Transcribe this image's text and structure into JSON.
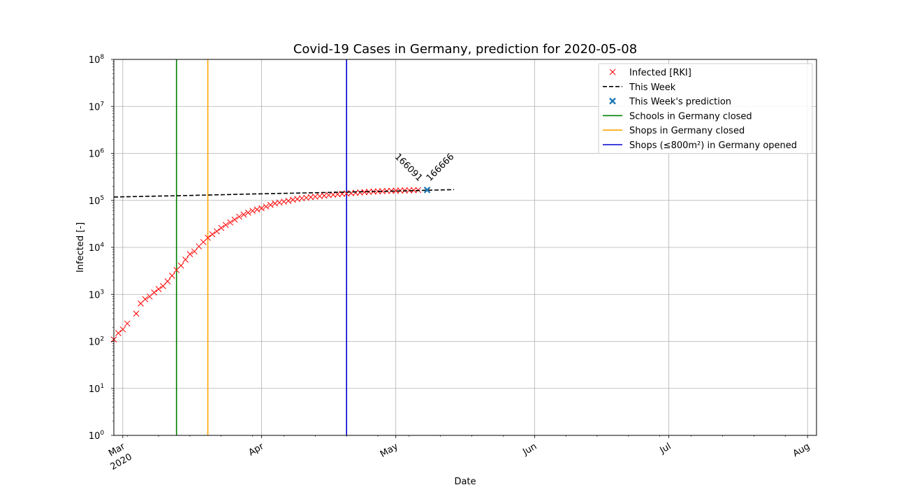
{
  "chart_data": {
    "type": "line",
    "title": "Covid-19 Cases in Germany, prediction for 2020-05-08",
    "xlabel": "Date",
    "ylabel": "Infected [-]",
    "yscale": "log",
    "ylim": [
      1,
      100000000
    ],
    "xlim": [
      "2020-02-28",
      "2020-08-03"
    ],
    "grid": true,
    "legend_position": "top-right",
    "x_ticks": [
      {
        "date": "2020-03-01",
        "label": "Mar",
        "sublabel": "2020"
      },
      {
        "date": "2020-04-01",
        "label": "Apr",
        "sublabel": ""
      },
      {
        "date": "2020-05-01",
        "label": "May",
        "sublabel": ""
      },
      {
        "date": "2020-06-01",
        "label": "Jun",
        "sublabel": ""
      },
      {
        "date": "2020-07-01",
        "label": "Jul",
        "sublabel": ""
      },
      {
        "date": "2020-08-01",
        "label": "Aug",
        "sublabel": ""
      }
    ],
    "y_ticks": [
      {
        "value": 1,
        "base": "10",
        "exp": "0"
      },
      {
        "value": 10,
        "base": "10",
        "exp": "1"
      },
      {
        "value": 100,
        "base": "10",
        "exp": "2"
      },
      {
        "value": 1000,
        "base": "10",
        "exp": "3"
      },
      {
        "value": 10000,
        "base": "10",
        "exp": "4"
      },
      {
        "value": 100000,
        "base": "10",
        "exp": "5"
      },
      {
        "value": 1000000,
        "base": "10",
        "exp": "6"
      },
      {
        "value": 10000000,
        "base": "10",
        "exp": "7"
      },
      {
        "value": 100000000,
        "base": "10",
        "exp": "8"
      }
    ],
    "series": [
      {
        "name": "Infected [RKI]",
        "kind": "markers",
        "marker": "x",
        "color": "#ff0000",
        "points": [
          [
            "2020-02-28",
            110
          ],
          [
            "2020-02-29",
            150
          ],
          [
            "2020-03-01",
            180
          ],
          [
            "2020-03-02",
            240
          ],
          [
            "2020-03-04",
            390
          ],
          [
            "2020-03-05",
            640
          ],
          [
            "2020-03-06",
            790
          ],
          [
            "2020-03-07",
            900
          ],
          [
            "2020-03-08",
            1100
          ],
          [
            "2020-03-09",
            1300
          ],
          [
            "2020-03-10",
            1500
          ],
          [
            "2020-03-11",
            1900
          ],
          [
            "2020-03-12",
            2500
          ],
          [
            "2020-03-13",
            3300
          ],
          [
            "2020-03-14",
            4100
          ],
          [
            "2020-03-15",
            5500
          ],
          [
            "2020-03-16",
            7200
          ],
          [
            "2020-03-17",
            8200
          ],
          [
            "2020-03-18",
            10500
          ],
          [
            "2020-03-19",
            13000
          ],
          [
            "2020-03-20",
            16000
          ],
          [
            "2020-03-21",
            19000
          ],
          [
            "2020-03-22",
            22000
          ],
          [
            "2020-03-23",
            26000
          ],
          [
            "2020-03-24",
            30000
          ],
          [
            "2020-03-25",
            34000
          ],
          [
            "2020-03-26",
            39000
          ],
          [
            "2020-03-27",
            45000
          ],
          [
            "2020-03-28",
            50000
          ],
          [
            "2020-03-29",
            55000
          ],
          [
            "2020-03-30",
            60000
          ],
          [
            "2020-03-31",
            64000
          ],
          [
            "2020-04-01",
            68000
          ],
          [
            "2020-04-02",
            74000
          ],
          [
            "2020-04-03",
            80000
          ],
          [
            "2020-04-04",
            86000
          ],
          [
            "2020-04-05",
            90000
          ],
          [
            "2020-04-06",
            94000
          ],
          [
            "2020-04-07",
            98000
          ],
          [
            "2020-04-08",
            103000
          ],
          [
            "2020-04-09",
            107000
          ],
          [
            "2020-04-10",
            111000
          ],
          [
            "2020-04-11",
            114000
          ],
          [
            "2020-04-12",
            117000
          ],
          [
            "2020-04-13",
            120000
          ],
          [
            "2020-04-14",
            123000
          ],
          [
            "2020-04-15",
            126000
          ],
          [
            "2020-04-16",
            129000
          ],
          [
            "2020-04-17",
            132000
          ],
          [
            "2020-04-18",
            135000
          ],
          [
            "2020-04-19",
            138000
          ],
          [
            "2020-04-20",
            140000
          ],
          [
            "2020-04-21",
            142000
          ],
          [
            "2020-04-22",
            145000
          ],
          [
            "2020-04-23",
            147000
          ],
          [
            "2020-04-24",
            150000
          ],
          [
            "2020-04-25",
            152000
          ],
          [
            "2020-04-26",
            154000
          ],
          [
            "2020-04-27",
            156000
          ],
          [
            "2020-04-28",
            157000
          ],
          [
            "2020-04-29",
            159000
          ],
          [
            "2020-04-30",
            160000
          ],
          [
            "2020-05-01",
            161000
          ],
          [
            "2020-05-02",
            162000
          ],
          [
            "2020-05-03",
            163000
          ],
          [
            "2020-05-04",
            164000
          ],
          [
            "2020-05-05",
            165000
          ],
          [
            "2020-05-06",
            166091
          ]
        ]
      },
      {
        "name": "This Week",
        "kind": "line",
        "dash": true,
        "color": "#000000",
        "points": [
          [
            "2020-02-28",
            118000
          ],
          [
            "2020-03-15",
            127000
          ],
          [
            "2020-04-01",
            138000
          ],
          [
            "2020-04-15",
            147000
          ],
          [
            "2020-05-01",
            158000
          ],
          [
            "2020-05-14",
            170000
          ]
        ]
      },
      {
        "name": "This Week's prediction",
        "kind": "markers",
        "marker": "X",
        "color": "#1f77b4",
        "points": [
          [
            "2020-05-08",
            166666
          ]
        ]
      }
    ],
    "events": [
      {
        "name": "Schools in Germany closed",
        "date": "2020-03-13",
        "color": "#008000"
      },
      {
        "name": "Shops in Germany closed",
        "date": "2020-03-20",
        "color": "#ffa500"
      },
      {
        "name": "Shops (≤800m²) in Germany opened",
        "date": "2020-04-20",
        "color": "#0000cd"
      }
    ],
    "annotations": [
      {
        "text": "166091",
        "date": "2020-05-06",
        "value": 166091
      },
      {
        "text": "166666",
        "date": "2020-05-08",
        "value": 166666
      }
    ]
  }
}
